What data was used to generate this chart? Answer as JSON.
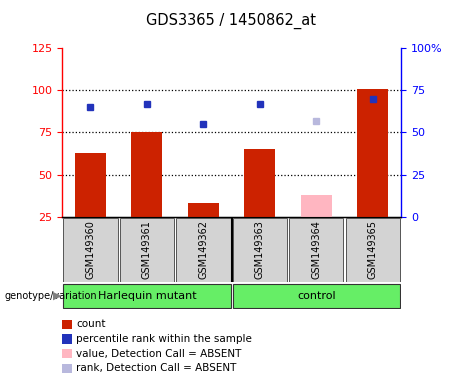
{
  "title": "GDS3365 / 1450862_at",
  "samples": [
    "GSM149360",
    "GSM149361",
    "GSM149362",
    "GSM149363",
    "GSM149364",
    "GSM149365"
  ],
  "count_values": [
    63,
    75,
    33,
    65,
    null,
    101
  ],
  "rank_values": [
    65,
    67,
    55,
    67,
    null,
    70
  ],
  "absent_value": [
    null,
    null,
    null,
    null,
    38,
    null
  ],
  "absent_rank": [
    null,
    null,
    null,
    null,
    57,
    null
  ],
  "left_ylim": [
    25,
    125
  ],
  "left_yticks": [
    25,
    50,
    75,
    100,
    125
  ],
  "right_ylim": [
    0,
    100
  ],
  "right_yticks": [
    0,
    25,
    50,
    75,
    100
  ],
  "right_tick_labels": [
    "0",
    "25",
    "50",
    "75",
    "100%"
  ],
  "bar_color": "#cc2200",
  "rank_color": "#2233bb",
  "absent_bar_color": "#ffb6c1",
  "absent_rank_color": "#b8b8dd",
  "bar_width": 0.55,
  "dotted_line_values": [
    50,
    75,
    100
  ],
  "group_boundary": 2.5,
  "legend_items": [
    {
      "label": "count",
      "color": "#cc2200"
    },
    {
      "label": "percentile rank within the sample",
      "color": "#2233bb"
    },
    {
      "label": "value, Detection Call = ABSENT",
      "color": "#ffb6c1"
    },
    {
      "label": "rank, Detection Call = ABSENT",
      "color": "#b8b8dd"
    }
  ]
}
